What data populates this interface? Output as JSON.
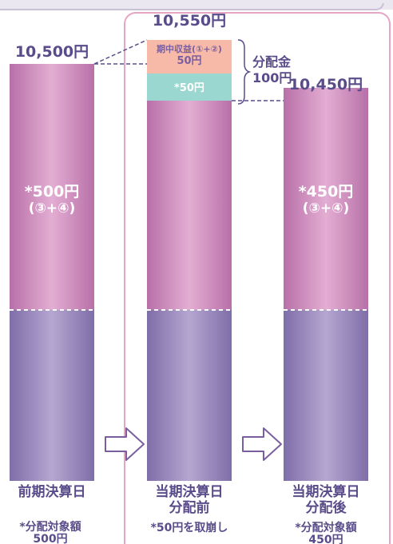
{
  "chart_data": {
    "type": "bar",
    "unit": "円",
    "categories": [
      "前期決算日",
      "当期決算日 分配前",
      "当期決算日 分配後"
    ],
    "totals": [
      {
        "value": 10500,
        "label": "10,500円"
      },
      {
        "value": 10550,
        "label": "10,550円"
      },
      {
        "value": 10450,
        "label": "10,450円"
      }
    ],
    "segments": [
      {
        "base_label": "",
        "main_value": 500,
        "main_label_1": "*500円",
        "main_label_2": "(③+④)"
      },
      {
        "base_label": "",
        "main_value": 500,
        "income_value": 50,
        "income_label_1": "期中収益(①+②)",
        "income_label_2": "50円",
        "reversal_value": 50,
        "reversal_label": "*50円"
      },
      {
        "base_label": "",
        "main_value": 450,
        "main_label_1": "*450円",
        "main_label_2": "(③+④)"
      }
    ],
    "distribution": {
      "label": "分配金",
      "value": 100,
      "value_label": "100円"
    },
    "category_label_lines": [
      [
        "前期決算日"
      ],
      [
        "当期決算日",
        "分配前"
      ],
      [
        "当期決算日",
        "分配後"
      ]
    ],
    "notes": [
      [
        "*分配対象額",
        "500円"
      ],
      [
        "*50円を取崩し"
      ],
      [
        "*分配対象額",
        "450円"
      ]
    ],
    "colors": {
      "pink_light": "#e3aed3",
      "pink_dark": "#b870a8",
      "purple_light": "#b5a6d1",
      "purple_dark": "#7f6ea8",
      "income": "#f7b9a8",
      "reversal": "#99d7d0",
      "frame": "#e4a6c4",
      "arrow": "#7a5fa0",
      "connector": "#5a4c8a"
    }
  }
}
